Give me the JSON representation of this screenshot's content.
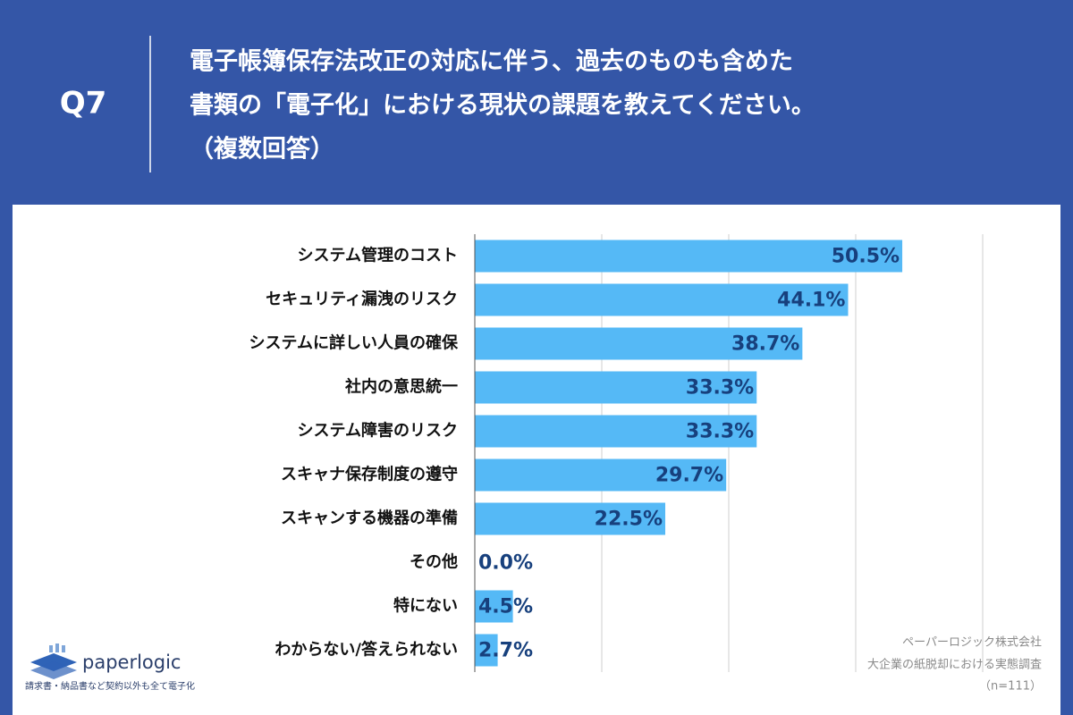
{
  "header": {
    "question": "Q7",
    "title_lines": [
      "電子帳簿保存法改正の対応に伴う、過去のものも含めた",
      "書類の「電子化」における現状の課題を教えてください。",
      "（複数回答）"
    ]
  },
  "chart_data": {
    "type": "bar",
    "orientation": "horizontal",
    "categories": [
      "システム管理のコスト",
      "セキュリティ漏洩のリスク",
      "システムに詳しい人員の確保",
      "社内の意思統一",
      "システム障害のリスク",
      "スキャナ保存制度の遵守",
      "スキャンする機器の準備",
      "その他",
      "特にない",
      "わからない/答えられない"
    ],
    "values": [
      50.5,
      44.1,
      38.7,
      33.3,
      33.3,
      29.7,
      22.5,
      0.0,
      4.5,
      2.7
    ],
    "value_labels": [
      "50.5%",
      "44.1%",
      "38.7%",
      "33.3%",
      "33.3%",
      "29.7%",
      "22.5%",
      "0.0%",
      "4.5%",
      "2.7%"
    ],
    "color": "#55b9f6",
    "label_color": "#17407d",
    "xlim": [
      0,
      60
    ],
    "xticks": [
      0,
      15,
      30,
      45,
      60
    ],
    "grid": true
  },
  "footer": {
    "logo": "paperlogic",
    "tagline": "請求書・納品書など契約以外も全て電子化",
    "source": [
      "ペーパーロジック株式会社",
      "大企業の紙脱却における実態調査",
      "（n=111）"
    ]
  }
}
